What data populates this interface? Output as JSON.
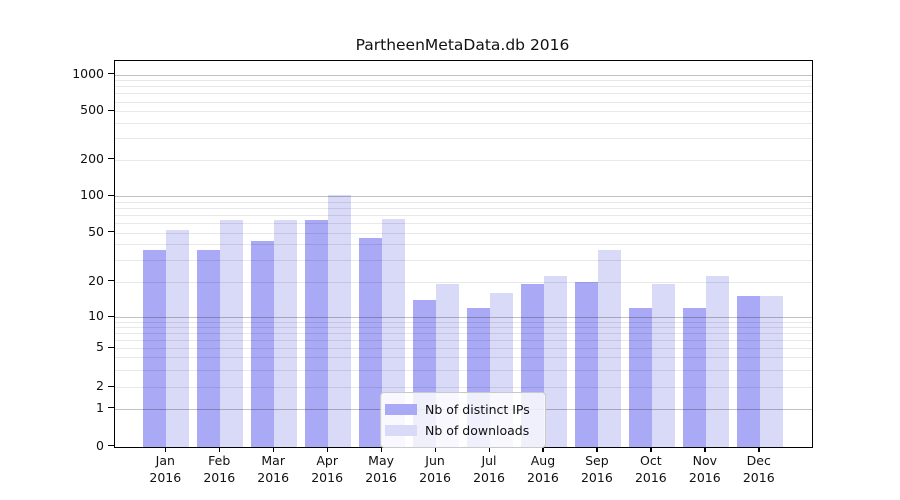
{
  "chart_data": {
    "type": "bar",
    "title": "PartheenMetaData.db 2016",
    "categories": [
      "Jan",
      "Feb",
      "Mar",
      "Apr",
      "May",
      "Jun",
      "Jul",
      "Aug",
      "Sep",
      "Oct",
      "Nov",
      "Dec"
    ],
    "year": "2016",
    "series": [
      {
        "name": "Nb of distinct IPs",
        "color": "#a9a9f5",
        "values": [
          36,
          36,
          43,
          64,
          45,
          14,
          12,
          19,
          20,
          12,
          12,
          15
        ]
      },
      {
        "name": "Nb of downloads",
        "color": "#d9d9f8",
        "values": [
          52,
          63,
          64,
          101,
          65,
          19,
          16,
          22,
          36,
          19,
          22,
          15
        ]
      }
    ],
    "yscale": "symlog",
    "y_ticks": [
      0,
      1,
      2,
      5,
      10,
      20,
      50,
      100,
      200,
      500,
      1000
    ],
    "ylim": [
      0,
      1300
    ],
    "grid": "on",
    "legend_position": "lower center"
  }
}
